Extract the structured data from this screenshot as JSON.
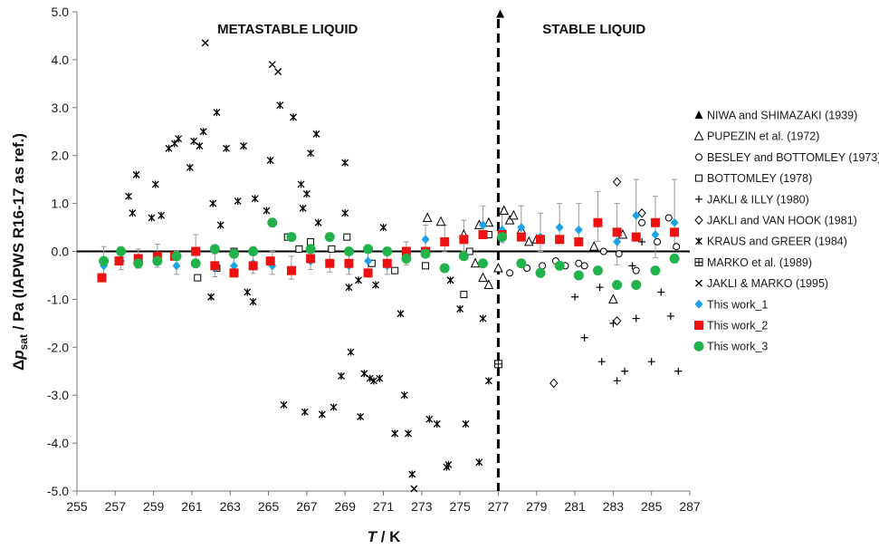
{
  "chart_data": {
    "type": "scatter",
    "title": "",
    "xlabel_main": "T",
    "xlabel_unit": " / K",
    "ylabel_delta": "Δ",
    "ylabel_p": "p",
    "ylabel_sub": "sat",
    "ylabel_rest": " / Pa (IAPWS R16-17 as ref.)",
    "xlim": [
      255,
      287
    ],
    "ylim": [
      -5,
      5
    ],
    "x_ticks": [
      255,
      257,
      259,
      261,
      263,
      265,
      267,
      269,
      271,
      273,
      275,
      277,
      279,
      281,
      283,
      285,
      287
    ],
    "y_ticks": [
      -5,
      -4,
      -3,
      -2,
      -1,
      0,
      1,
      2,
      3,
      4,
      5
    ],
    "y_tick_labels": [
      "-5.0",
      "-4.0",
      "-3.0",
      "-2.0",
      "-1.0",
      "0.0",
      "1.0",
      "2.0",
      "3.0",
      "4.0",
      "5.0"
    ],
    "grid": false,
    "legend_position": "right",
    "regions": [
      {
        "label": "METASTABLE LIQUID",
        "x_center": 266.0
      },
      {
        "label": "STABLE LIQUID",
        "x_center": 282.0
      }
    ],
    "divider_x": 277,
    "series": [
      {
        "name": "NIWA and SHIMAZAKI (1939)",
        "marker": "triangle-filled",
        "color": "#000000",
        "points": [
          [
            277.1,
            4.95
          ]
        ]
      },
      {
        "name": "PUPEZIN et al. (1972)",
        "marker": "triangle-open",
        "color": "#000000",
        "points": [
          [
            273.3,
            0.7
          ],
          [
            274.0,
            0.62
          ],
          [
            275.2,
            0.35
          ],
          [
            276.0,
            0.55
          ],
          [
            276.5,
            0.6
          ],
          [
            277.3,
            0.85
          ],
          [
            277.6,
            0.65
          ],
          [
            277.8,
            0.75
          ],
          [
            278.2,
            0.45
          ],
          [
            278.6,
            0.2
          ],
          [
            279.0,
            0.25
          ],
          [
            282.0,
            0.1
          ],
          [
            283.0,
            -1.0
          ],
          [
            283.5,
            0.35
          ],
          [
            276.2,
            -0.55
          ],
          [
            276.5,
            -0.7
          ],
          [
            277.0,
            -0.35
          ],
          [
            275.8,
            -0.25
          ]
        ]
      },
      {
        "name": "BESLEY and BOTTOMLEY (1973)",
        "marker": "circle-open",
        "color": "#000000",
        "points": [
          [
            278.5,
            -0.35
          ],
          [
            279.3,
            -0.3
          ],
          [
            280.5,
            -0.3
          ],
          [
            281.2,
            -0.25
          ],
          [
            282.5,
            0.0
          ],
          [
            283.3,
            -0.05
          ],
          [
            284.2,
            -0.4
          ],
          [
            284.5,
            0.6
          ],
          [
            285.3,
            0.2
          ],
          [
            285.9,
            0.7
          ],
          [
            286.3,
            0.1
          ],
          [
            280.0,
            -0.2
          ],
          [
            281.5,
            -0.3
          ],
          [
            277.6,
            -0.45
          ]
        ]
      },
      {
        "name": "BOTTOMLEY (1978)",
        "marker": "square-open",
        "color": "#000000",
        "points": [
          [
            261.3,
            -0.55
          ],
          [
            262.3,
            -0.35
          ],
          [
            263.2,
            0.0
          ],
          [
            266.0,
            0.3
          ],
          [
            266.6,
            0.05
          ],
          [
            267.2,
            0.2
          ],
          [
            268.3,
            0.05
          ],
          [
            269.1,
            0.3
          ],
          [
            270.4,
            -0.25
          ],
          [
            271.6,
            -0.4
          ],
          [
            273.2,
            -0.3
          ],
          [
            275.2,
            -0.9
          ],
          [
            275.5,
            0.0
          ],
          [
            276.5,
            0.35
          ]
        ]
      },
      {
        "name": "JAKLI & ILLY (1980)",
        "marker": "plus",
        "color": "#000000",
        "points": [
          [
            281.0,
            -0.95
          ],
          [
            281.5,
            -1.8
          ],
          [
            282.3,
            -0.75
          ],
          [
            282.4,
            -2.3
          ],
          [
            283.0,
            -1.5
          ],
          [
            283.2,
            -2.7
          ],
          [
            283.6,
            -2.5
          ],
          [
            284.2,
            -1.4
          ],
          [
            284.5,
            0.2
          ],
          [
            285.0,
            -2.3
          ],
          [
            285.5,
            -0.85
          ],
          [
            286.0,
            -1.35
          ],
          [
            286.4,
            -2.5
          ],
          [
            284.0,
            -0.3
          ]
        ]
      },
      {
        "name": "JAKLI and VAN HOOK (1981)",
        "marker": "diamond-open",
        "color": "#000000",
        "points": [
          [
            279.9,
            -2.75
          ],
          [
            283.2,
            1.45
          ],
          [
            283.2,
            -1.45
          ],
          [
            284.5,
            0.8
          ]
        ]
      },
      {
        "name": "KRAUS and GREER (1984)",
        "marker": "asterisk",
        "color": "#000000",
        "points": [
          [
            257.7,
            1.15
          ],
          [
            257.9,
            0.8
          ],
          [
            258.1,
            1.6
          ],
          [
            258.9,
            0.7
          ],
          [
            259.1,
            1.4
          ],
          [
            259.4,
            0.75
          ],
          [
            259.8,
            2.15
          ],
          [
            260.1,
            2.25
          ],
          [
            260.3,
            2.35
          ],
          [
            260.9,
            1.75
          ],
          [
            261.1,
            2.3
          ],
          [
            261.4,
            2.2
          ],
          [
            261.6,
            2.5
          ],
          [
            262.1,
            1.0
          ],
          [
            262.3,
            2.9
          ],
          [
            262.5,
            0.55
          ],
          [
            262.8,
            2.15
          ],
          [
            263.4,
            1.05
          ],
          [
            263.7,
            2.2
          ],
          [
            263.9,
            -0.85
          ],
          [
            264.2,
            -1.05
          ],
          [
            264.3,
            1.1
          ],
          [
            264.9,
            0.85
          ],
          [
            265.1,
            1.9
          ],
          [
            265.6,
            3.05
          ],
          [
            265.8,
            -3.2
          ],
          [
            266.3,
            2.8
          ],
          [
            266.7,
            1.4
          ],
          [
            266.8,
            0.9
          ],
          [
            266.9,
            -3.35
          ],
          [
            267.0,
            1.2
          ],
          [
            267.2,
            2.05
          ],
          [
            267.5,
            2.45
          ],
          [
            267.6,
            0.6
          ],
          [
            267.8,
            -3.4
          ],
          [
            268.4,
            -3.25
          ],
          [
            268.8,
            -2.6
          ],
          [
            269.0,
            0.8
          ],
          [
            269.0,
            1.85
          ],
          [
            269.2,
            -0.75
          ],
          [
            269.3,
            -2.1
          ],
          [
            269.7,
            -0.6
          ],
          [
            269.8,
            -3.45
          ],
          [
            270.0,
            -2.55
          ],
          [
            270.3,
            -2.65
          ],
          [
            270.5,
            -2.7
          ],
          [
            270.6,
            -0.7
          ],
          [
            270.8,
            -2.65
          ],
          [
            271.0,
            0.5
          ],
          [
            271.6,
            -3.8
          ],
          [
            271.9,
            -1.3
          ],
          [
            272.1,
            -3.0
          ],
          [
            272.3,
            -3.8
          ],
          [
            272.5,
            -4.65
          ],
          [
            273.4,
            -3.5
          ],
          [
            273.8,
            -3.6
          ],
          [
            274.3,
            -4.5
          ],
          [
            274.4,
            -4.45
          ],
          [
            274.5,
            -0.6
          ],
          [
            275.0,
            -1.2
          ],
          [
            275.3,
            -3.6
          ],
          [
            276.0,
            -4.4
          ],
          [
            276.2,
            -1.4
          ],
          [
            276.5,
            -2.7
          ],
          [
            262.0,
            -0.95
          ]
        ]
      },
      {
        "name": "MARKO et al. (1989)",
        "marker": "square-plus",
        "color": "#000000",
        "points": [
          [
            277.0,
            -2.35
          ]
        ]
      },
      {
        "name": "JAKLI & MARKO (1995)",
        "marker": "cross",
        "color": "#000000",
        "points": [
          [
            261.7,
            4.35
          ],
          [
            265.2,
            3.9
          ],
          [
            265.5,
            3.75
          ],
          [
            272.6,
            -4.95
          ]
        ]
      },
      {
        "name": "This work_1",
        "marker": "diamond-filled",
        "color": "#1ba3e6",
        "points": [
          [
            256.4,
            -0.3
          ],
          [
            257.3,
            -0.2
          ],
          [
            258.2,
            -0.2
          ],
          [
            259.2,
            -0.15
          ],
          [
            260.2,
            -0.3
          ],
          [
            261.2,
            0.0
          ],
          [
            262.2,
            -0.35
          ],
          [
            263.2,
            -0.3
          ],
          [
            264.2,
            -0.25
          ],
          [
            265.2,
            -0.3
          ],
          [
            266.2,
            -0.4
          ],
          [
            267.2,
            -0.2
          ],
          [
            268.2,
            -0.25
          ],
          [
            269.2,
            -0.3
          ],
          [
            270.2,
            -0.2
          ],
          [
            271.2,
            -0.3
          ],
          [
            272.2,
            -0.1
          ],
          [
            273.2,
            0.25
          ],
          [
            274.2,
            0.2
          ],
          [
            275.2,
            0.25
          ],
          [
            276.2,
            0.55
          ],
          [
            277.2,
            0.45
          ],
          [
            278.2,
            0.5
          ],
          [
            279.2,
            0.3
          ],
          [
            280.2,
            0.5
          ],
          [
            281.2,
            0.45
          ],
          [
            282.2,
            0.6
          ],
          [
            283.2,
            0.2
          ],
          [
            284.2,
            0.75
          ],
          [
            285.2,
            0.35
          ],
          [
            286.2,
            0.6
          ]
        ],
        "err_up": [
          0.4,
          0.3,
          0.25,
          0.3,
          0.3,
          0.35,
          0.3,
          0.3,
          0.35,
          0.3,
          0.3,
          0.3,
          0.3,
          0.3,
          0.3,
          0.3,
          0.3,
          0.3,
          0.35,
          0.4,
          0.4,
          0.45,
          0.45,
          0.5,
          0.5,
          0.55,
          0.65,
          0.8,
          0.75,
          0.8,
          0.9
        ]
      },
      {
        "name": "This work_2",
        "marker": "square-filled",
        "color": "#ee1111",
        "points": [
          [
            256.3,
            -0.55
          ],
          [
            257.2,
            -0.2
          ],
          [
            258.2,
            -0.15
          ],
          [
            259.2,
            -0.1
          ],
          [
            260.1,
            -0.1
          ],
          [
            261.2,
            0.0
          ],
          [
            262.2,
            -0.3
          ],
          [
            263.2,
            -0.45
          ],
          [
            264.2,
            -0.3
          ],
          [
            265.1,
            -0.2
          ],
          [
            266.2,
            -0.4
          ],
          [
            267.2,
            -0.15
          ],
          [
            268.2,
            -0.25
          ],
          [
            269.2,
            -0.25
          ],
          [
            270.2,
            -0.45
          ],
          [
            271.2,
            -0.25
          ],
          [
            272.2,
            0.0
          ],
          [
            273.2,
            0.0
          ],
          [
            274.2,
            0.2
          ],
          [
            275.2,
            0.25
          ],
          [
            276.2,
            0.35
          ],
          [
            277.2,
            0.35
          ],
          [
            278.2,
            0.3
          ],
          [
            279.2,
            0.25
          ],
          [
            280.2,
            0.25
          ],
          [
            281.2,
            0.2
          ],
          [
            282.2,
            0.6
          ],
          [
            283.2,
            0.4
          ],
          [
            284.2,
            0.3
          ],
          [
            285.2,
            0.6
          ],
          [
            286.2,
            0.4
          ]
        ]
      },
      {
        "name": "This work_3",
        "marker": "circle-filled",
        "color": "#22b24c",
        "points": [
          [
            256.4,
            -0.2
          ],
          [
            257.3,
            0.0
          ],
          [
            258.2,
            -0.25
          ],
          [
            259.2,
            -0.2
          ],
          [
            260.2,
            -0.1
          ],
          [
            261.2,
            -0.25
          ],
          [
            262.2,
            0.05
          ],
          [
            263.2,
            -0.05
          ],
          [
            264.2,
            0.0
          ],
          [
            265.2,
            0.6
          ],
          [
            266.2,
            0.3
          ],
          [
            267.2,
            0.05
          ],
          [
            268.2,
            0.3
          ],
          [
            269.2,
            0.0
          ],
          [
            270.2,
            0.05
          ],
          [
            271.2,
            0.0
          ],
          [
            272.2,
            -0.15
          ],
          [
            273.2,
            -0.05
          ],
          [
            274.2,
            -0.35
          ],
          [
            275.2,
            -0.1
          ],
          [
            276.2,
            -0.25
          ],
          [
            277.2,
            0.3
          ],
          [
            278.2,
            -0.25
          ],
          [
            279.2,
            -0.45
          ],
          [
            280.2,
            -0.3
          ],
          [
            281.2,
            -0.5
          ],
          [
            282.2,
            -0.4
          ],
          [
            283.2,
            -0.7
          ],
          [
            284.2,
            -0.7
          ],
          [
            285.2,
            -0.4
          ],
          [
            286.2,
            -0.15
          ]
        ]
      }
    ]
  }
}
